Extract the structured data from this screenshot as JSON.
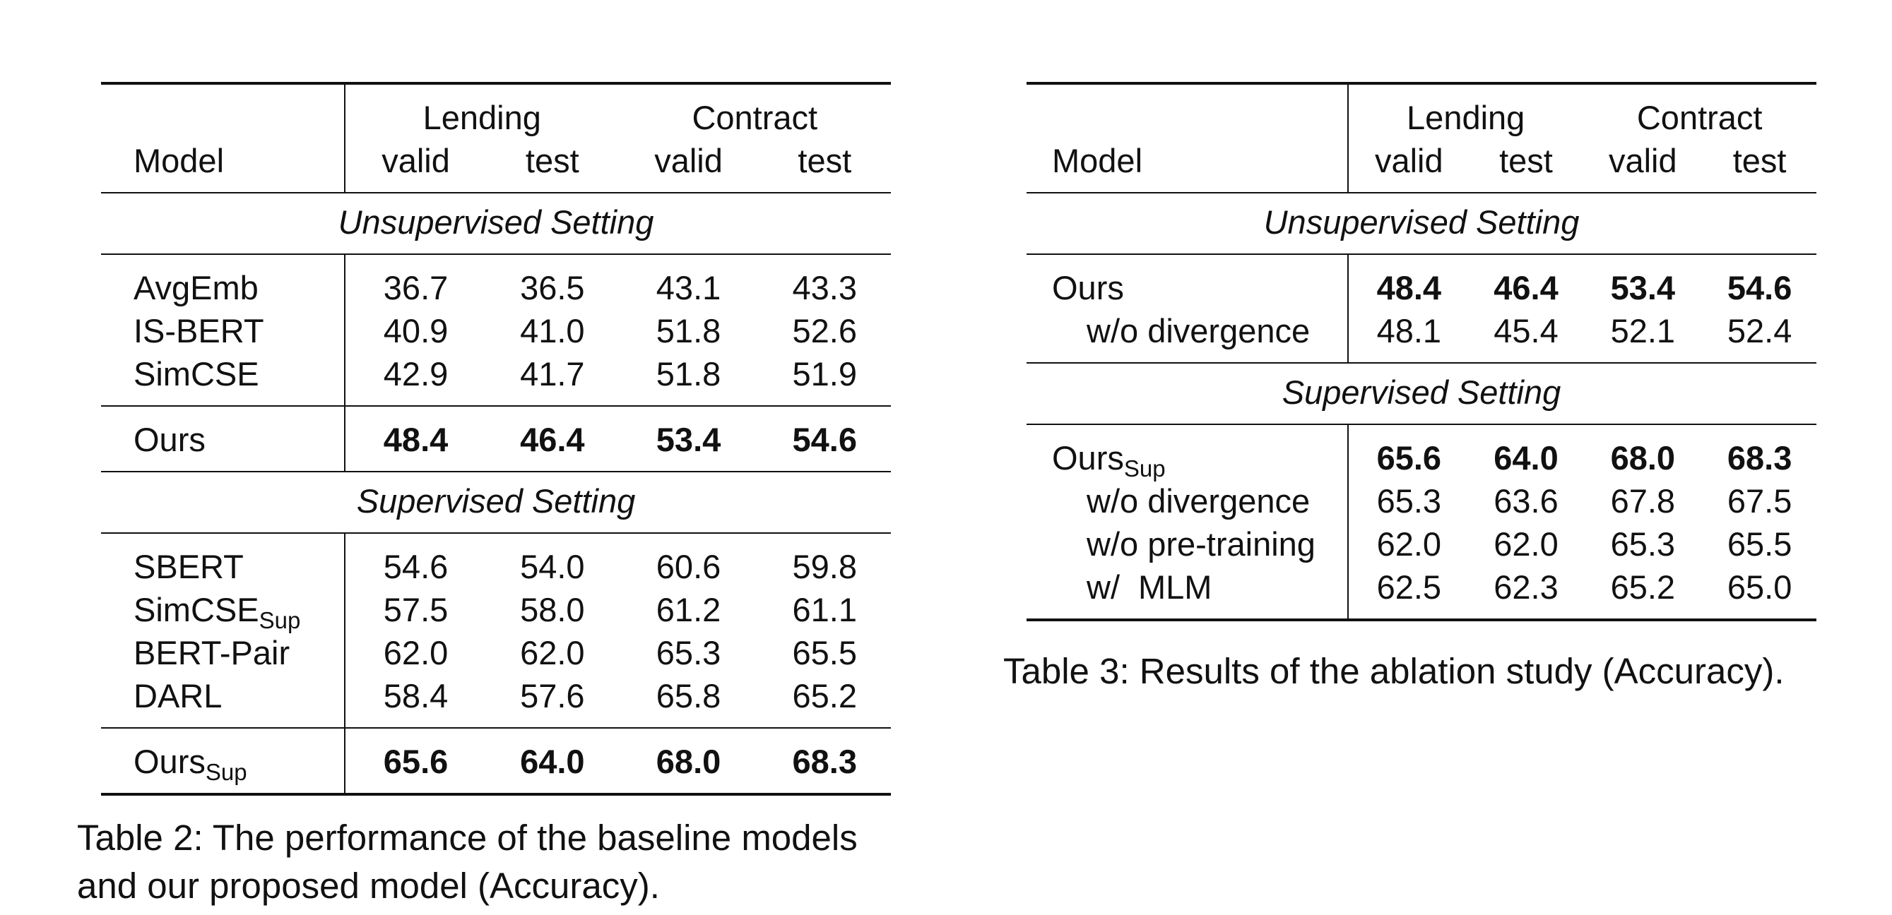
{
  "table2": {
    "header": {
      "model": "Model",
      "groups": [
        "Lending",
        "Contract"
      ],
      "subcols": [
        "valid",
        "test",
        "valid",
        "test"
      ]
    },
    "unsupervised_title": "Unsupervised Setting",
    "unsupervised_rows": [
      {
        "name": "AvgEmb",
        "values": [
          "36.7",
          "36.5",
          "43.1",
          "43.3"
        ]
      },
      {
        "name": "IS-BERT",
        "values": [
          "40.9",
          "41.0",
          "51.8",
          "52.6"
        ]
      },
      {
        "name": "SimCSE",
        "values": [
          "42.9",
          "41.7",
          "51.8",
          "51.9"
        ]
      }
    ],
    "ours_row": {
      "name": "Ours",
      "values": [
        "48.4",
        "46.4",
        "53.4",
        "54.6"
      ]
    },
    "supervised_title": "Supervised Setting",
    "supervised_rows": [
      {
        "name": "SBERT",
        "sub": "",
        "values": [
          "54.6",
          "54.0",
          "60.6",
          "59.8"
        ]
      },
      {
        "name": "SimCSE",
        "sub": "Sup",
        "values": [
          "57.5",
          "58.0",
          "61.2",
          "61.1"
        ]
      },
      {
        "name": "BERT-Pair",
        "sub": "",
        "values": [
          "62.0",
          "62.0",
          "65.3",
          "65.5"
        ]
      },
      {
        "name": "DARL",
        "sub": "",
        "values": [
          "58.4",
          "57.6",
          "65.8",
          "65.2"
        ]
      }
    ],
    "ours_sup_row": {
      "name": "Ours",
      "sub": "Sup",
      "values": [
        "65.6",
        "64.0",
        "68.0",
        "68.3"
      ]
    },
    "caption_line1": "Table 2: The performance of the baseline models",
    "caption_line2": "and our proposed model (Accuracy)."
  },
  "table3": {
    "header": {
      "model": "Model",
      "groups": [
        "Lending",
        "Contract"
      ],
      "subcols": [
        "valid",
        "test",
        "valid",
        "test"
      ]
    },
    "unsupervised_title": "Unsupervised Setting",
    "unsupervised_rows": [
      {
        "name": "Ours",
        "values": [
          "48.4",
          "46.4",
          "53.4",
          "54.6"
        ]
      },
      {
        "name": "w/o divergence",
        "values": [
          "48.1",
          "45.4",
          "52.1",
          "52.4"
        ]
      }
    ],
    "supervised_title": "Supervised Setting",
    "supervised_rows": [
      {
        "name": "Ours",
        "sub": "Sup",
        "values": [
          "65.6",
          "64.0",
          "68.0",
          "68.3"
        ]
      },
      {
        "name": "w/o divergence",
        "values": [
          "65.3",
          "63.6",
          "67.8",
          "67.5"
        ]
      },
      {
        "name": "w/o pre-training",
        "values": [
          "62.0",
          "62.0",
          "65.3",
          "65.5"
        ]
      },
      {
        "name_a": "w/",
        "name_b": "MLM",
        "values": [
          "62.5",
          "62.3",
          "65.2",
          "65.0"
        ]
      }
    ],
    "caption": "Table 3: Results of the ablation study (Accuracy)."
  }
}
